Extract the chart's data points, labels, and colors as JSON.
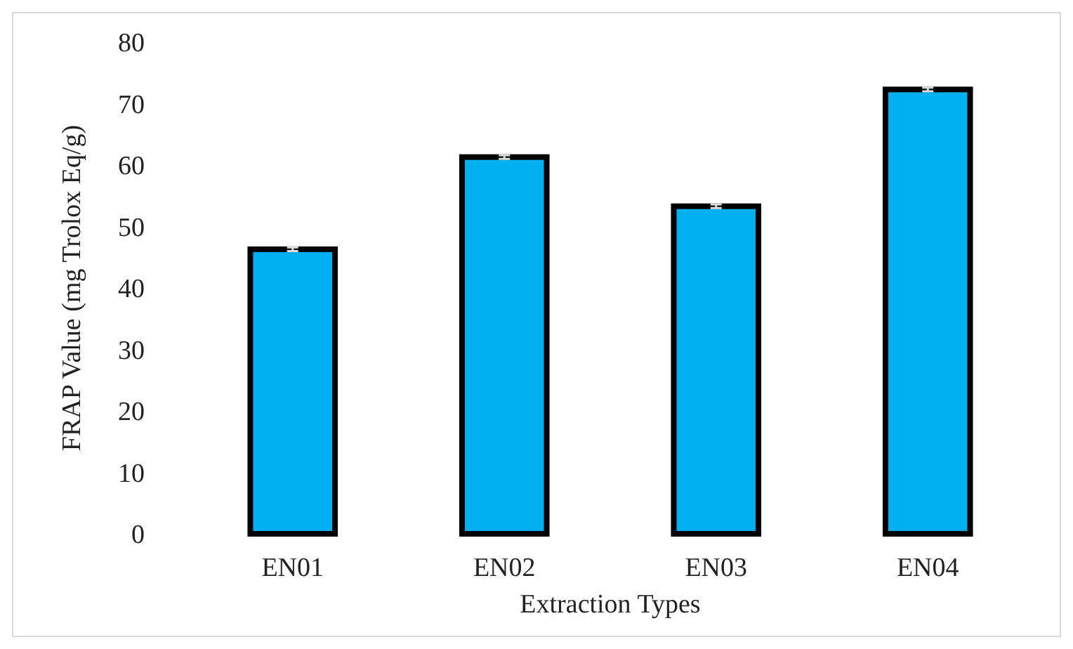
{
  "chart_data": {
    "type": "bar",
    "xlabel": "Extraction Types",
    "ylabel": "FRAP Value (mg Trolox Eq/g)",
    "categories": [
      "EN01",
      "EN02",
      "EN03",
      "EN04"
    ],
    "values": [
      46.3,
      61.3,
      53.3,
      72.3
    ],
    "errors": [
      0.3,
      0.3,
      0.3,
      0.3
    ],
    "color": "#00b0f0",
    "ylim": [
      0,
      80
    ],
    "yticks": [
      0,
      10,
      20,
      30,
      40,
      50,
      60,
      70,
      80
    ],
    "grid": false
  }
}
